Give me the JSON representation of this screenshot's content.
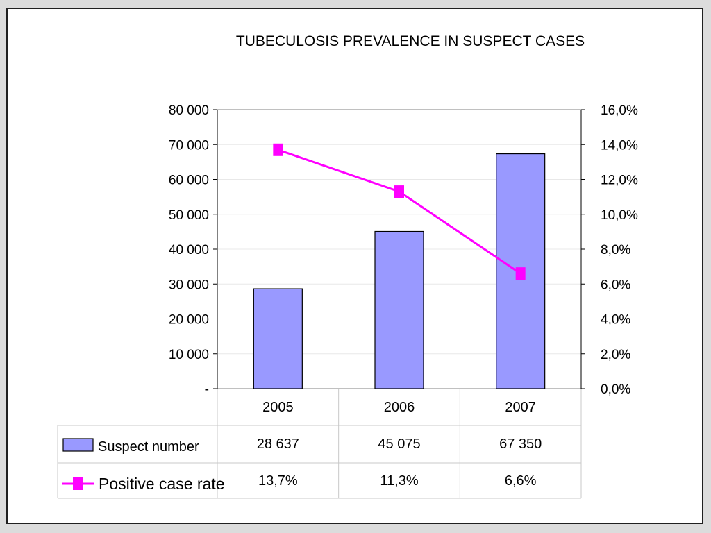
{
  "chart_data": {
    "type": "bar",
    "title": "TUBECULOSIS PREVALENCE IN SUSPECT CASES",
    "categories": [
      "2005",
      "2006",
      "2007"
    ],
    "series": [
      {
        "name": "Suspect number",
        "type": "bar",
        "axis": "left",
        "values": [
          28637,
          45075,
          67350
        ],
        "labels": [
          "28 637",
          "45 075",
          "67 350"
        ],
        "color": "#9999ff"
      },
      {
        "name": "Positive case rate",
        "type": "line",
        "axis": "right",
        "values": [
          13.7,
          11.3,
          6.6
        ],
        "labels": [
          "13,7%",
          "11,3%",
          "6,6%"
        ],
        "color": "#ff00ff"
      }
    ],
    "y_left": {
      "lim": [
        0,
        80000
      ],
      "ticks": [
        0,
        10000,
        20000,
        30000,
        40000,
        50000,
        60000,
        70000,
        80000
      ],
      "tick_labels": [
        "-",
        "10 000",
        "20 000",
        "30 000",
        "40 000",
        "50 000",
        "60 000",
        "70 000",
        "80 000"
      ]
    },
    "y_right": {
      "lim": [
        0,
        16
      ],
      "ticks": [
        0,
        2,
        4,
        6,
        8,
        10,
        12,
        14,
        16
      ],
      "tick_labels": [
        "0,0%",
        "2,0%",
        "4,0%",
        "6,0%",
        "8,0%",
        "10,0%",
        "12,0%",
        "14,0%",
        "16,0%"
      ]
    },
    "data_table": true,
    "grid": true
  }
}
